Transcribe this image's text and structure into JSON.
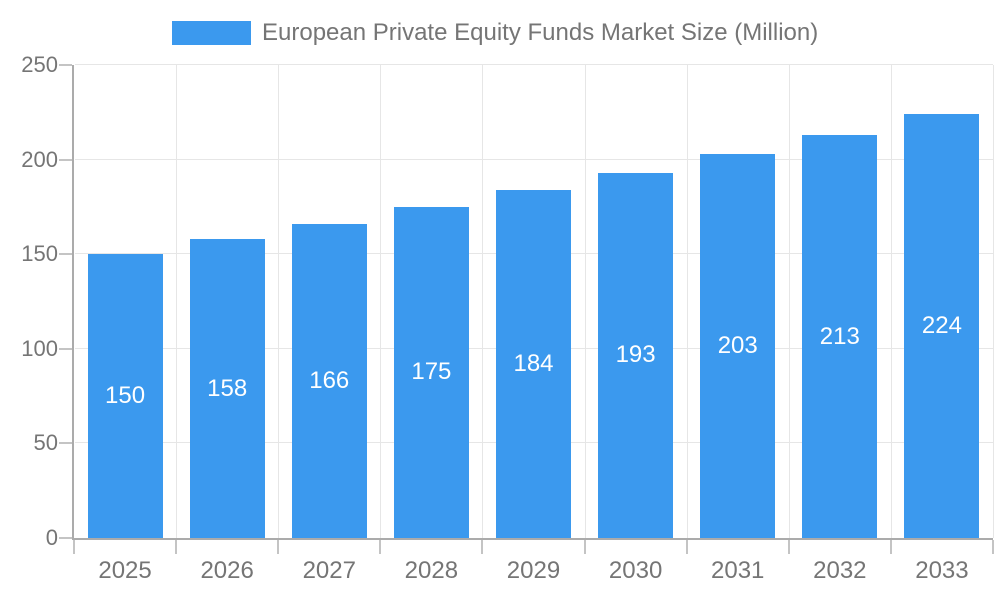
{
  "legend": {
    "label": "European Private Equity Funds Market Size (Million)"
  },
  "colors": {
    "bar": "#3B99EE",
    "grid": "#E6E6E6",
    "axis": "#ABABAB",
    "tick": "#C4C4C4",
    "axis_text": "#757575",
    "legend_text": "#757575",
    "bar_label_text": "#FFFFFF",
    "background": "#FFFFFF"
  },
  "chart_data": {
    "type": "bar",
    "title": "European Private Equity Funds Market Size (Million)",
    "categories": [
      "2025",
      "2026",
      "2027",
      "2028",
      "2029",
      "2030",
      "2031",
      "2032",
      "2033"
    ],
    "values": [
      150,
      158,
      166,
      175,
      184,
      193,
      203,
      213,
      224
    ],
    "series_name": "European Private Equity Funds Market Size (Million)",
    "xlabel": "",
    "ylabel": "",
    "ylim": [
      0,
      250
    ],
    "yticks": [
      0,
      50,
      100,
      150,
      200,
      250
    ],
    "grid": true,
    "legend_position": "top-center",
    "value_label_position": "inside-middle"
  }
}
